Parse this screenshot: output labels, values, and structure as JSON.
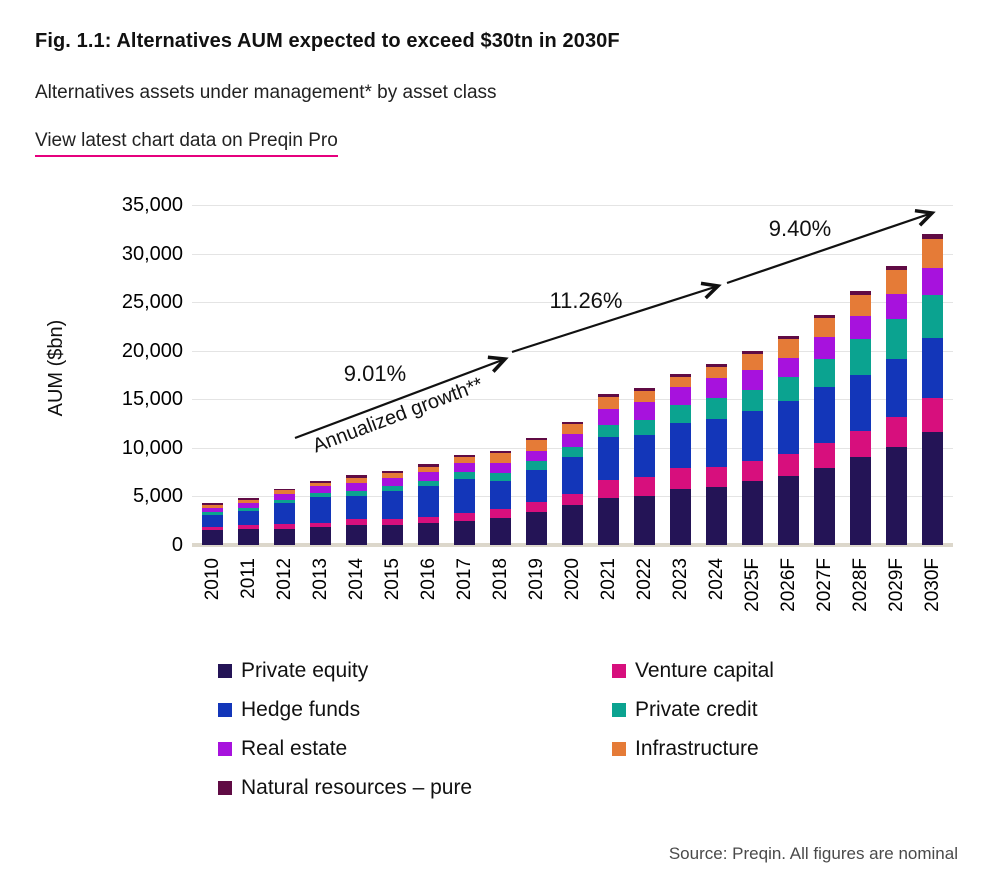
{
  "header": {
    "title": "Fig. 1.1: Alternatives AUM expected to exceed $30tn in 2030F",
    "subtitle": "Alternatives assets under management* by asset class",
    "link_label": "View latest chart data on Preqin Pro",
    "link_underline_color": "#e6007e"
  },
  "chart_data": {
    "type": "bar",
    "stacked": true,
    "grid": true,
    "ylabel": "AUM ($bn)",
    "ylim": [
      0,
      35000
    ],
    "ytick_step": 5000,
    "yticks": [
      "0",
      "5,000",
      "10,000",
      "15,000",
      "20,000",
      "25,000",
      "30,000",
      "35,000"
    ],
    "categories": [
      "2010",
      "2011",
      "2012",
      "2013",
      "2014",
      "2015",
      "2016",
      "2017",
      "2018",
      "2019",
      "2020",
      "2021",
      "2022",
      "2023",
      "2024",
      "2025F",
      "2026F",
      "2027F",
      "2028F",
      "2029F",
      "2030F"
    ],
    "series": [
      {
        "name": "Private equity",
        "color": "#241456",
        "values": [
          1500,
          1600,
          1680,
          1820,
          2090,
          2060,
          2230,
          2500,
          2750,
          3350,
          4100,
          4800,
          5000,
          5800,
          6000,
          6600,
          7100,
          7900,
          9100,
          10100,
          11600
        ]
      },
      {
        "name": "Venture capital",
        "color": "#d70f7d",
        "values": [
          400,
          420,
          450,
          480,
          550,
          620,
          620,
          790,
          950,
          1030,
          1200,
          1900,
          2050,
          2100,
          2050,
          2050,
          2250,
          2650,
          2600,
          3100,
          3500
        ]
      },
      {
        "name": "Hedge funds",
        "color": "#1336b9",
        "values": [
          1200,
          1480,
          2150,
          2600,
          2400,
          2900,
          3200,
          3500,
          2850,
          3330,
          3780,
          4400,
          4300,
          4700,
          4900,
          5100,
          5500,
          5700,
          5800,
          6000,
          6200
        ]
      },
      {
        "name": "Private credit",
        "color": "#0ba390",
        "values": [
          350,
          350,
          400,
          420,
          480,
          520,
          580,
          690,
          860,
          930,
          1030,
          1250,
          1500,
          1800,
          2150,
          2250,
          2400,
          2850,
          3700,
          4100,
          4400
        ]
      },
      {
        "name": "Real estate",
        "color": "#a712dd",
        "values": [
          400,
          500,
          600,
          750,
          880,
          760,
          850,
          920,
          1080,
          1030,
          1270,
          1650,
          1900,
          1850,
          2100,
          2000,
          2000,
          2300,
          2400,
          2570,
          2850
        ]
      },
      {
        "name": "Infrastructure",
        "color": "#e57b37",
        "values": [
          280,
          300,
          350,
          360,
          480,
          520,
          550,
          650,
          950,
          1090,
          1030,
          1200,
          1100,
          1050,
          1100,
          1700,
          1950,
          2000,
          2150,
          2430,
          2950
        ]
      },
      {
        "name": "Natural resources – pure",
        "color": "#600b44",
        "values": [
          170,
          150,
          170,
          170,
          320,
          220,
          270,
          250,
          280,
          240,
          290,
          300,
          300,
          300,
          300,
          300,
          300,
          300,
          350,
          400,
          500
        ]
      }
    ],
    "totals": [
      4300,
      4800,
      5800,
      6600,
      7200,
      7600,
      8300,
      9300,
      9720,
      11000,
      12700,
      15500,
      16150,
      17600,
      18600,
      20000,
      21500,
      23700,
      26100,
      28700,
      32000
    ],
    "legend_columns": [
      [
        "Private equity",
        "Hedge funds",
        "Real estate",
        "Natural resources – pure"
      ],
      [
        "Venture capital",
        "Private credit",
        "Infrastructure"
      ]
    ],
    "annotations": {
      "growth_label": "Annualized growth**",
      "segments": [
        {
          "label": "9.01%",
          "period": "2010-2019"
        },
        {
          "label": "11.26%",
          "period": "2019-2024"
        },
        {
          "label": "9.40%",
          "period": "2024-2030F"
        }
      ]
    }
  },
  "source": "Source: Preqin. All figures are nominal"
}
